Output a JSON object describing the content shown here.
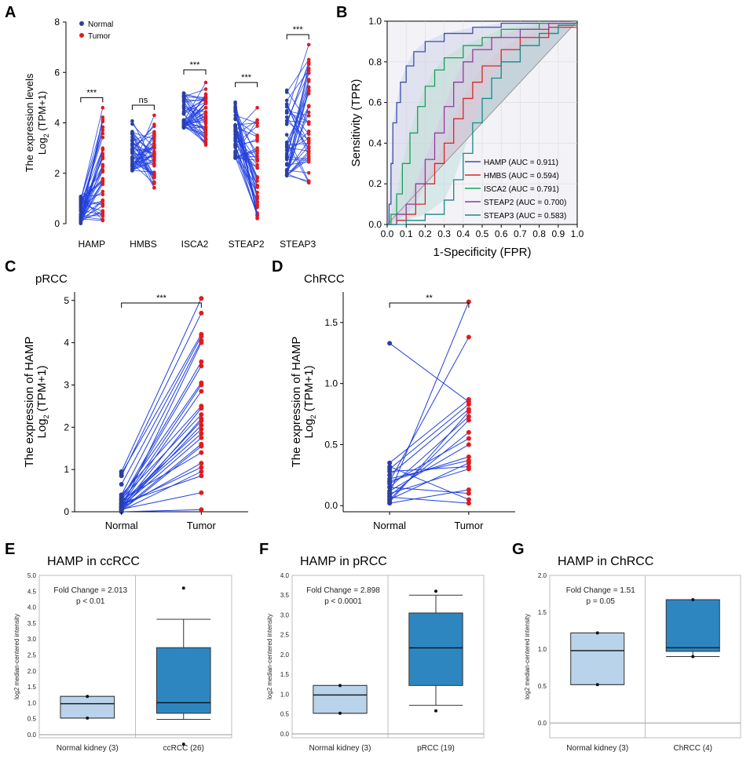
{
  "panel_labels": {
    "a": "A",
    "b": "B",
    "c": "C",
    "d": "D",
    "e": "E",
    "f": "F",
    "g": "G"
  },
  "colors": {
    "normal": "#2a3f9e",
    "tumor": "#e41a1c",
    "line": "#1f3fe0",
    "box_normal": "#b9d3ea",
    "box_tumor": "#2e86c1"
  },
  "chart_data": [
    {
      "id": "A",
      "type": "line",
      "title": "",
      "ylabel_line1": "The expression levels",
      "ylabel_line2": "Log",
      "ylabel_sub": "2",
      "ylabel_suffix": " (TPM+1)",
      "ylim": [
        0,
        8
      ],
      "yticks": [
        "0",
        "2",
        "4",
        "6",
        "8"
      ],
      "categories": [
        "HAMP",
        "HMBS",
        "ISCA2",
        "STEAP2",
        "STEAP3"
      ],
      "legend": [
        "Normal",
        "Tumor"
      ],
      "significance": [
        "***",
        "ns",
        "***",
        "***",
        "***"
      ],
      "groups": [
        {
          "normal": {
            "min": 0.0,
            "max": 1.1,
            "mean": 0.3
          },
          "tumor": {
            "min": 0.0,
            "max": 4.6,
            "mean": 1.1
          },
          "bracket_y": 5.0
        },
        {
          "normal": {
            "min": 2.1,
            "max": 4.2,
            "mean": 3.3
          },
          "tumor": {
            "min": 1.4,
            "max": 4.3,
            "mean": 3.4
          },
          "bracket_y": 4.7
        },
        {
          "normal": {
            "min": 3.8,
            "max": 5.3,
            "mean": 4.6
          },
          "tumor": {
            "min": 3.1,
            "max": 5.6,
            "mean": 4.2
          },
          "bracket_y": 6.1
        },
        {
          "normal": {
            "min": 2.6,
            "max": 4.9,
            "mean": 3.3
          },
          "tumor": {
            "min": 0.2,
            "max": 4.6,
            "mean": 2.9
          },
          "bracket_y": 5.6
        },
        {
          "normal": {
            "min": 1.9,
            "max": 5.3,
            "mean": 3.6
          },
          "tumor": {
            "min": 1.4,
            "max": 7.1,
            "mean": 4.2
          },
          "bracket_y": 7.5
        }
      ]
    },
    {
      "id": "B",
      "type": "line",
      "xlabel": "1-Specificity (FPR)",
      "ylabel": "Sensitivity (TPR)",
      "xlim": [
        0,
        1
      ],
      "ylim": [
        0,
        1
      ],
      "xticks": [
        "0.0",
        "0.1",
        "0.2",
        "0.3",
        "0.4",
        "0.5",
        "0.6",
        "0.7",
        "0.8",
        "0.9",
        "1.0"
      ],
      "yticks": [
        "0.0",
        "0.2",
        "0.4",
        "0.6",
        "0.8",
        "1.0"
      ],
      "series": [
        {
          "name": "HAMP (AUC = 0.911)",
          "color": "#3a4fa8",
          "fill": "#c9cfe6",
          "points": [
            [
              0,
              0
            ],
            [
              0.01,
              0.1
            ],
            [
              0.02,
              0.3
            ],
            [
              0.03,
              0.5
            ],
            [
              0.05,
              0.6
            ],
            [
              0.07,
              0.7
            ],
            [
              0.1,
              0.78
            ],
            [
              0.14,
              0.85
            ],
            [
              0.2,
              0.9
            ],
            [
              0.3,
              0.94
            ],
            [
              0.45,
              0.97
            ],
            [
              0.6,
              0.99
            ],
            [
              1,
              1
            ]
          ]
        },
        {
          "name": "HMBS (AUC = 0.594)",
          "color": "#d62728",
          "fill": "#e8b3bd",
          "points": [
            [
              0,
              0
            ],
            [
              0.05,
              0.02
            ],
            [
              0.1,
              0.05
            ],
            [
              0.15,
              0.1
            ],
            [
              0.2,
              0.2
            ],
            [
              0.25,
              0.3
            ],
            [
              0.3,
              0.4
            ],
            [
              0.35,
              0.52
            ],
            [
              0.4,
              0.62
            ],
            [
              0.45,
              0.7
            ],
            [
              0.5,
              0.78
            ],
            [
              0.6,
              0.86
            ],
            [
              0.7,
              0.92
            ],
            [
              0.85,
              0.97
            ],
            [
              1,
              1
            ]
          ]
        },
        {
          "name": "ISCA2 (AUC = 0.791)",
          "color": "#1a9e5c",
          "fill": "#b9e1cd",
          "points": [
            [
              0,
              0
            ],
            [
              0.02,
              0.05
            ],
            [
              0.05,
              0.15
            ],
            [
              0.08,
              0.3
            ],
            [
              0.12,
              0.45
            ],
            [
              0.16,
              0.58
            ],
            [
              0.2,
              0.68
            ],
            [
              0.25,
              0.76
            ],
            [
              0.3,
              0.82
            ],
            [
              0.4,
              0.88
            ],
            [
              0.5,
              0.92
            ],
            [
              0.6,
              0.96
            ],
            [
              0.8,
              0.99
            ],
            [
              1,
              1
            ]
          ]
        },
        {
          "name": "STEAP2 (AUC = 0.700)",
          "color": "#8e3d9e",
          "fill": "#d9c2e0",
          "points": [
            [
              0,
              0
            ],
            [
              0.05,
              0.05
            ],
            [
              0.1,
              0.1
            ],
            [
              0.15,
              0.2
            ],
            [
              0.2,
              0.32
            ],
            [
              0.25,
              0.45
            ],
            [
              0.3,
              0.58
            ],
            [
              0.35,
              0.7
            ],
            [
              0.4,
              0.8
            ],
            [
              0.45,
              0.86
            ],
            [
              0.55,
              0.92
            ],
            [
              0.7,
              0.96
            ],
            [
              0.85,
              0.99
            ],
            [
              1,
              1
            ]
          ]
        },
        {
          "name": "STEAP3 (AUC = 0.583)",
          "color": "#16888a",
          "fill": "#b6dcdc",
          "points": [
            [
              0,
              0
            ],
            [
              0.1,
              0.02
            ],
            [
              0.2,
              0.05
            ],
            [
              0.3,
              0.12
            ],
            [
              0.35,
              0.22
            ],
            [
              0.4,
              0.35
            ],
            [
              0.45,
              0.5
            ],
            [
              0.5,
              0.62
            ],
            [
              0.55,
              0.72
            ],
            [
              0.6,
              0.8
            ],
            [
              0.7,
              0.88
            ],
            [
              0.8,
              0.94
            ],
            [
              0.9,
              0.98
            ],
            [
              1,
              1
            ]
          ]
        }
      ]
    },
    {
      "id": "C",
      "type": "line",
      "title": "pRCC",
      "ylabel_line1": "The expression of HAMP",
      "ylabel_line2": "Log",
      "ylabel_sub": "2",
      "ylabel_suffix": " (TPM+1)",
      "ylim": [
        0,
        5.2
      ],
      "yticks": [
        "0",
        "1",
        "2",
        "3",
        "4",
        "5"
      ],
      "categories": [
        "Normal",
        "Tumor"
      ],
      "significance": "***",
      "pairs": [
        [
          0.95,
          5.05
        ],
        [
          0.85,
          4.7
        ],
        [
          0.9,
          4.2
        ],
        [
          0.65,
          4.15
        ],
        [
          0.4,
          4.05
        ],
        [
          0.3,
          3.55
        ],
        [
          0.25,
          3.45
        ],
        [
          0.35,
          3.05
        ],
        [
          0.2,
          3.0
        ],
        [
          0.15,
          2.85
        ],
        [
          0.1,
          2.45
        ],
        [
          0.3,
          2.3
        ],
        [
          0.05,
          2.2
        ],
        [
          0.12,
          2.15
        ],
        [
          0.08,
          2.05
        ],
        [
          0.22,
          1.95
        ],
        [
          0.18,
          1.85
        ],
        [
          0.05,
          1.6
        ],
        [
          0.02,
          1.55
        ],
        [
          0.28,
          1.4
        ],
        [
          0.1,
          1.15
        ],
        [
          0.15,
          1.05
        ],
        [
          0.03,
          0.95
        ],
        [
          0.2,
          0.85
        ],
        [
          0.06,
          0.45
        ],
        [
          0.0,
          0.05
        ],
        [
          0.12,
          1.75
        ],
        [
          0.4,
          2.5
        ],
        [
          0.08,
          4.0
        ]
      ]
    },
    {
      "id": "D",
      "type": "line",
      "title": "ChRCC",
      "ylabel_line1": "The expression of HAMP",
      "ylabel_line2": "Log",
      "ylabel_sub": "2",
      "ylabel_suffix": " (TPM+1)",
      "ylim": [
        -0.05,
        1.75
      ],
      "yticks": [
        "0.0",
        "0.5",
        "1.0",
        "1.5"
      ],
      "ytick_values": [
        0,
        0.5,
        1.0,
        1.5
      ],
      "categories": [
        "Normal",
        "Tumor"
      ],
      "significance": "**",
      "pairs": [
        [
          0.1,
          1.67
        ],
        [
          0.2,
          1.38
        ],
        [
          1.33,
          0.85
        ],
        [
          0.35,
          0.87
        ],
        [
          0.3,
          0.83
        ],
        [
          0.25,
          0.79
        ],
        [
          0.15,
          0.73
        ],
        [
          0.05,
          0.7
        ],
        [
          0.08,
          0.6
        ],
        [
          0.18,
          0.55
        ],
        [
          0.12,
          0.5
        ],
        [
          0.22,
          0.37
        ],
        [
          0.05,
          0.35
        ],
        [
          0.28,
          0.32
        ],
        [
          0.1,
          0.3
        ],
        [
          0.02,
          0.13
        ],
        [
          0.15,
          0.1
        ],
        [
          0.32,
          0.05
        ],
        [
          0.07,
          0.02
        ],
        [
          0.2,
          0.4
        ],
        [
          0.03,
          0.77
        ]
      ]
    },
    {
      "id": "E",
      "type": "box",
      "title": "HAMP in ccRCC",
      "ylabel": "log2 median-centered intensity",
      "ylim": [
        -0.1,
        5.0
      ],
      "yticks": [
        "0.0",
        "0.5",
        "1.0",
        "1.5",
        "2.0",
        "2.5",
        "3.0",
        "3.5",
        "4.0",
        "4.5",
        "5.0"
      ],
      "fold_change": "Fold Change = 2.013",
      "p_value": "p < 0.01",
      "categories": [
        "Normal kidney (3)",
        "ccRCC (26)"
      ],
      "boxes": [
        {
          "wlow": 0.52,
          "q1": 0.52,
          "median": 0.97,
          "q3": 1.2,
          "whigh": 1.2,
          "outliers": [
            1.2,
            0.52
          ]
        },
        {
          "wlow": 0.48,
          "q1": 0.67,
          "median": 1.0,
          "q3": 2.73,
          "whigh": 3.62,
          "outliers": [
            4.6,
            -0.3
          ]
        }
      ]
    },
    {
      "id": "F",
      "type": "box",
      "title": "HAMP in pRCC",
      "ylabel": "log2 median-centered intensity",
      "ylim": [
        -0.1,
        4.0
      ],
      "yticks": [
        "0.0",
        "0.5",
        "1.0",
        "1.5",
        "2.0",
        "2.5",
        "3.0",
        "3.5",
        "4.0"
      ],
      "fold_change": "Fold Change = 2.898",
      "p_value": "p < 0.0001",
      "categories": [
        "Normal kidney (3)",
        "pRCC (19)"
      ],
      "boxes": [
        {
          "wlow": 0.52,
          "q1": 0.52,
          "median": 0.98,
          "q3": 1.22,
          "whigh": 1.22,
          "outliers": [
            1.22,
            0.52
          ]
        },
        {
          "wlow": 0.72,
          "q1": 1.22,
          "median": 2.17,
          "q3": 3.05,
          "whigh": 3.5,
          "outliers": [
            3.6,
            0.58
          ]
        }
      ]
    },
    {
      "id": "G",
      "type": "box",
      "title": "HAMP in ChRCC",
      "ylabel": "log2 median-centered intensity",
      "ylim": [
        -0.2,
        2.0
      ],
      "yticks": [
        "0.0",
        "0.5",
        "1.0",
        "1.5",
        "2.0"
      ],
      "fold_change": "Fold Change = 1.51",
      "p_value": "p = 0.05",
      "categories": [
        "Normal kidney (3)",
        "ChRCC (4)"
      ],
      "boxes": [
        {
          "wlow": 0.52,
          "q1": 0.52,
          "median": 0.98,
          "q3": 1.22,
          "whigh": 1.22,
          "outliers": [
            1.22,
            0.52
          ]
        },
        {
          "wlow": 0.9,
          "q1": 0.97,
          "median": 1.02,
          "q3": 1.67,
          "whigh": 1.67,
          "outliers": [
            1.67,
            0.9
          ]
        }
      ]
    }
  ]
}
